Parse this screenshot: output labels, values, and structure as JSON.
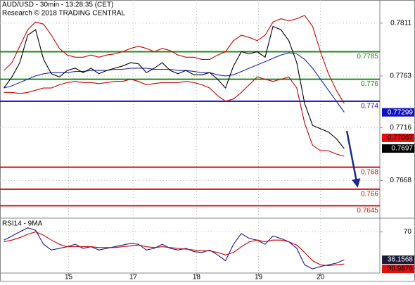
{
  "chart_data": [
    {
      "type": "line",
      "title": "AUD/USD - 30min - 13:28:35 (CET)",
      "subtitle": "Research © 2018 TRADING CENTRAL",
      "x": [
        3,
        9,
        15,
        21,
        27,
        33,
        39,
        45,
        51,
        57,
        63,
        69,
        75,
        81,
        87,
        93,
        99,
        105,
        111,
        117,
        123,
        129,
        135,
        141,
        147,
        153,
        159,
        165,
        171,
        177,
        183,
        189,
        195,
        201,
        207,
        213,
        219,
        225,
        231,
        237,
        243,
        249,
        255,
        261
      ],
      "xlim": [
        0,
        288
      ],
      "ylim": [
        0.7635,
        0.7832
      ],
      "yticks": [
        0.7668,
        0.7716,
        0.7763,
        0.7811
      ],
      "grid": true,
      "series": [
        {
          "color": "#cc0000",
          "values": [
            0.7768,
            0.7775,
            0.779,
            0.7805,
            0.7812,
            0.781,
            0.78,
            0.7788,
            0.7782,
            0.778,
            0.778,
            0.7782,
            0.778,
            0.7782,
            0.7783,
            0.7785,
            0.7788,
            0.779,
            0.7788,
            0.7785,
            0.7788,
            0.7786,
            0.7782,
            0.778,
            0.778,
            0.7778,
            0.7778,
            0.7782,
            0.7785,
            0.7795,
            0.78,
            0.7798,
            0.7795,
            0.78,
            0.7812,
            0.7815,
            0.7813,
            0.7815,
            0.7818,
            0.7808,
            0.7785,
            0.7765,
            0.775,
            0.7738
          ]
        },
        {
          "color": "#cc0000",
          "values": [
            0.7748,
            0.7748,
            0.7747,
            0.7748,
            0.775,
            0.7752,
            0.7752,
            0.7755,
            0.7757,
            0.7758,
            0.7757,
            0.7757,
            0.7756,
            0.7757,
            0.7758,
            0.7758,
            0.776,
            0.7758,
            0.7755,
            0.7756,
            0.7757,
            0.7757,
            0.7757,
            0.7758,
            0.7757,
            0.7755,
            0.7752,
            0.7745,
            0.774,
            0.7742,
            0.7748,
            0.7755,
            0.7762,
            0.776,
            0.7758,
            0.776,
            0.7762,
            0.7752,
            0.772,
            0.77,
            0.7695,
            0.7695,
            0.7692,
            0.769
          ]
        },
        {
          "color": "#2020c0",
          "values": [
            0.7752,
            0.7754,
            0.7757,
            0.776,
            0.7763,
            0.7765,
            0.7766,
            0.7766,
            0.7766,
            0.7767,
            0.7767,
            0.7768,
            0.7768,
            0.7768,
            0.7769,
            0.7769,
            0.777,
            0.777,
            0.777,
            0.7769,
            0.7769,
            0.7769,
            0.7768,
            0.7768,
            0.7767,
            0.7766,
            0.7766,
            0.7764,
            0.7763,
            0.7764,
            0.7767,
            0.777,
            0.7773,
            0.7776,
            0.7779,
            0.7782,
            0.7784,
            0.7783,
            0.7778,
            0.777,
            0.776,
            0.775,
            0.774,
            0.773
          ]
        },
        {
          "color": "#000000",
          "values": [
            0.7752,
            0.7762,
            0.7775,
            0.78,
            0.7805,
            0.7778,
            0.7765,
            0.7762,
            0.7768,
            0.777,
            0.7766,
            0.777,
            0.7765,
            0.7768,
            0.777,
            0.7772,
            0.7775,
            0.7774,
            0.7766,
            0.777,
            0.7775,
            0.7768,
            0.7765,
            0.7768,
            0.7764,
            0.7764,
            0.7766,
            0.776,
            0.7752,
            0.7772,
            0.7785,
            0.7783,
            0.7785,
            0.778,
            0.7808,
            0.7805,
            0.7795,
            0.7775,
            0.7738,
            0.7718,
            0.7715,
            0.7712,
            0.7706,
            0.7697
          ]
        }
      ],
      "levels": [
        {
          "value": 0.7785,
          "color": "#1a8a1a"
        },
        {
          "value": 0.776,
          "color": "#1a8a1a"
        },
        {
          "value": 0.774,
          "color": "#1010c0"
        },
        {
          "value": 0.768,
          "color": "#d01010"
        },
        {
          "value": 0.766,
          "color": "#d01010"
        },
        {
          "value": 0.7645,
          "color": "#d01010"
        }
      ],
      "tags": [
        {
          "value": 0.77299,
          "color": "#1010c0",
          "text_color": "#ffffff"
        },
        {
          "value": 0.77067,
          "color": "#e01010",
          "text_color": "#000000"
        },
        {
          "value": 0.7697,
          "color": "#000000",
          "text_color": "#ffffff"
        }
      ],
      "forecast": {
        "x": [
          263,
          271
        ],
        "values": [
          0.7713,
          0.7663
        ],
        "color": "#1a2a8a"
      }
    },
    {
      "type": "line",
      "title": "RSI14 - 9MA",
      "x": [
        3,
        9,
        15,
        21,
        27,
        33,
        39,
        45,
        51,
        57,
        63,
        69,
        75,
        81,
        87,
        93,
        99,
        105,
        111,
        117,
        123,
        129,
        135,
        141,
        147,
        153,
        159,
        165,
        171,
        177,
        183,
        189,
        195,
        201,
        207,
        213,
        219,
        225,
        231,
        237,
        243,
        249,
        255,
        261
      ],
      "xlim": [
        0,
        288
      ],
      "xticks": [
        {
          "value": 52,
          "label": "15"
        },
        {
          "value": 101,
          "label": "17"
        },
        {
          "value": 149,
          "label": "18"
        },
        {
          "value": 196,
          "label": "19"
        },
        {
          "value": 243,
          "label": "20"
        }
      ],
      "ylim": [
        20,
        85
      ],
      "yticks": [
        70
      ],
      "series": [
        {
          "color": "#1a1a8a",
          "values": [
            60,
            65,
            70,
            75,
            72,
            55,
            48,
            50,
            52,
            55,
            50,
            52,
            48,
            50,
            52,
            54,
            56,
            55,
            48,
            50,
            55,
            50,
            48,
            50,
            46,
            45,
            48,
            42,
            35,
            55,
            68,
            62,
            60,
            55,
            65,
            62,
            58,
            50,
            30,
            25,
            28,
            30,
            32,
            36.1568
          ]
        },
        {
          "color": "#cc0000",
          "values": [
            58,
            60,
            63,
            67,
            70,
            66,
            60,
            55,
            52,
            52,
            52,
            52,
            51,
            51,
            51,
            52,
            53,
            54,
            52,
            51,
            52,
            51,
            50,
            49,
            48,
            47,
            47,
            45,
            42,
            45,
            52,
            58,
            60,
            58,
            60,
            60,
            58,
            54,
            45,
            35,
            30,
            29,
            30,
            30.9876
          ]
        }
      ],
      "tags": [
        {
          "value": 36.1568,
          "color": "#1a1a3a",
          "text_color": "#ffffff"
        },
        {
          "value": 30.9876,
          "color": "#e01010",
          "text_color": "#000000"
        }
      ]
    }
  ]
}
